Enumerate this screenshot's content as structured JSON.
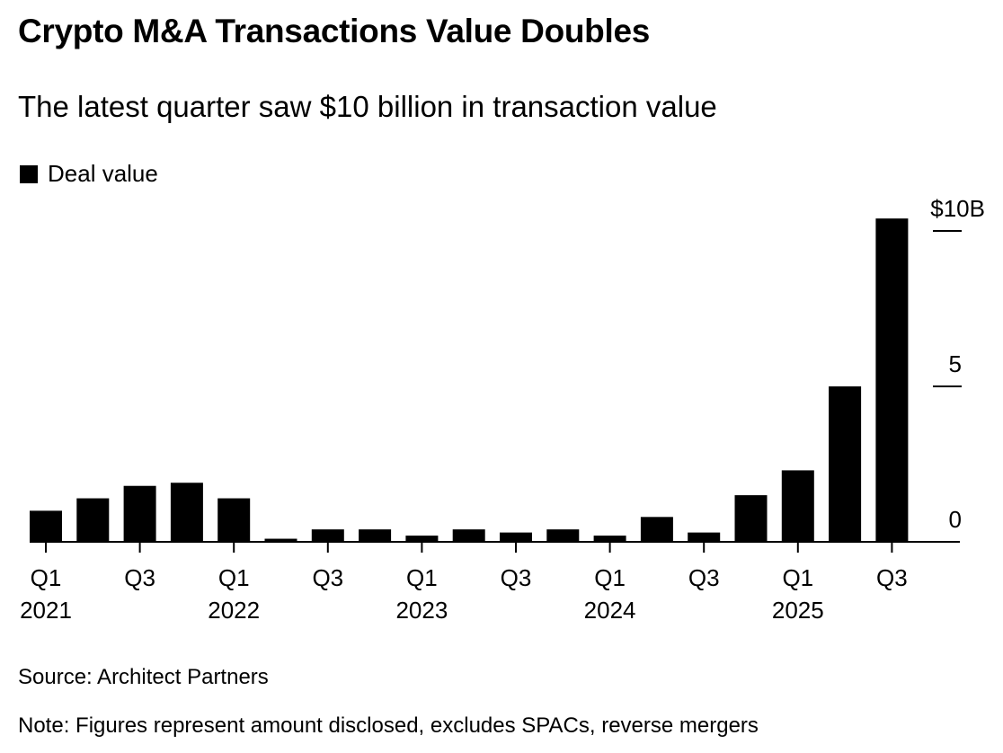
{
  "chart_data": {
    "type": "bar",
    "title": "Crypto M&A Transactions Value Doubles",
    "subtitle": "The latest quarter saw $10 billion in transaction value",
    "legend": [
      {
        "label": "Deal value",
        "color": "#000000"
      }
    ],
    "legend_position": "top-left",
    "categories": [
      "Q1 2021",
      "Q2 2021",
      "Q3 2021",
      "Q4 2021",
      "Q1 2022",
      "Q2 2022",
      "Q3 2022",
      "Q4 2022",
      "Q1 2023",
      "Q2 2023",
      "Q3 2023",
      "Q4 2023",
      "Q1 2024",
      "Q2 2024",
      "Q3 2024",
      "Q4 2024",
      "Q1 2025",
      "Q2 2025",
      "Q3 2025"
    ],
    "series": [
      {
        "name": "Deal value",
        "unit": "$B",
        "values": [
          1.0,
          1.4,
          1.8,
          1.9,
          1.4,
          0.1,
          0.4,
          0.4,
          0.2,
          0.4,
          0.3,
          0.4,
          0.2,
          0.8,
          0.3,
          1.5,
          2.3,
          5.0,
          10.4
        ]
      }
    ],
    "x_tick_labels": [
      {
        "index": 0,
        "quarter": "Q1",
        "year": "2021"
      },
      {
        "index": 2,
        "quarter": "Q3",
        "year": ""
      },
      {
        "index": 4,
        "quarter": "Q1",
        "year": "2022"
      },
      {
        "index": 6,
        "quarter": "Q3",
        "year": ""
      },
      {
        "index": 8,
        "quarter": "Q1",
        "year": "2023"
      },
      {
        "index": 10,
        "quarter": "Q3",
        "year": ""
      },
      {
        "index": 12,
        "quarter": "Q1",
        "year": "2024"
      },
      {
        "index": 14,
        "quarter": "Q3",
        "year": ""
      },
      {
        "index": 16,
        "quarter": "Q1",
        "year": "2025"
      },
      {
        "index": 18,
        "quarter": "Q3",
        "year": ""
      }
    ],
    "y_ticks": [
      {
        "value": 0,
        "label": "0"
      },
      {
        "value": 5,
        "label": "5"
      },
      {
        "value": 10,
        "label": "$10B"
      }
    ],
    "ylim": [
      0,
      10.5
    ],
    "y_axis_side": "right",
    "grid": false,
    "xlabel": "",
    "ylabel": ""
  },
  "footer": {
    "source": "Source: Architect Partners",
    "note": "Note: Figures represent amount disclosed, excludes SPACs, reverse mergers"
  }
}
